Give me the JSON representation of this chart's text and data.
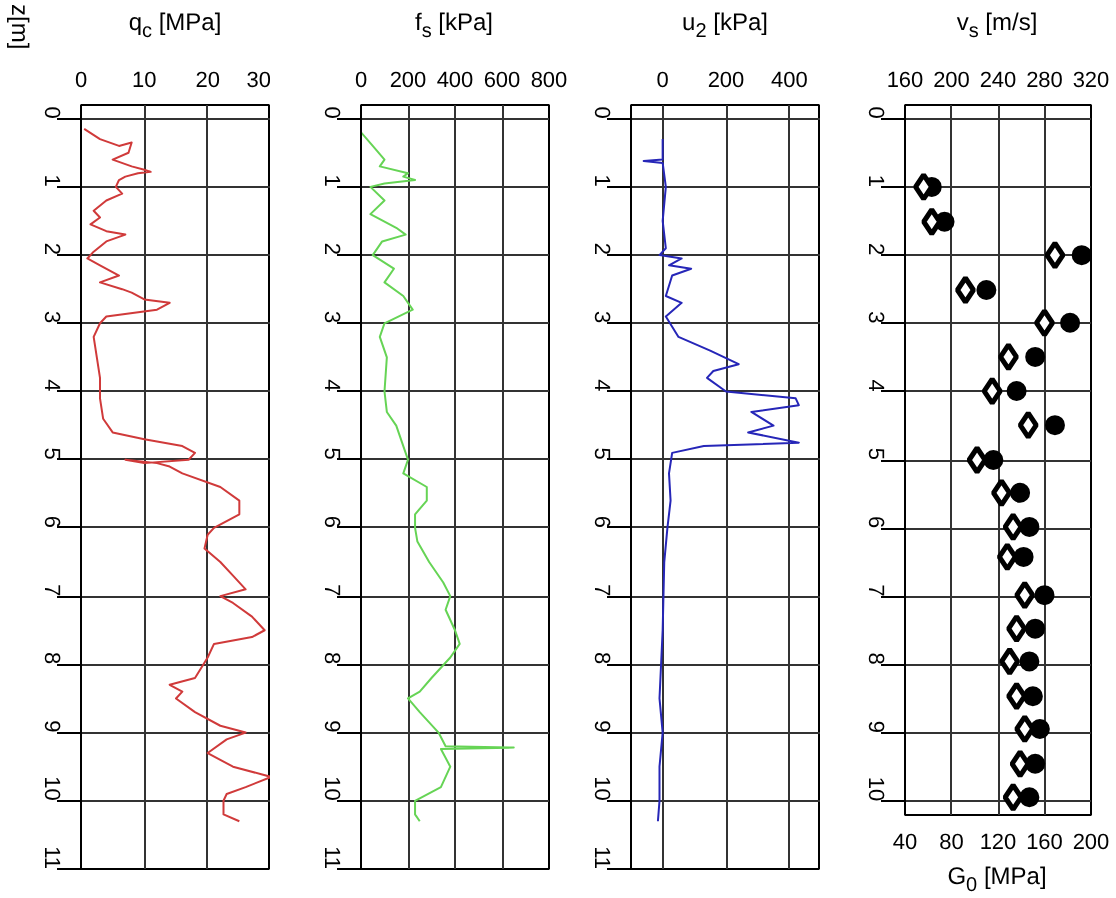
{
  "chart_data": [
    {
      "type": "line",
      "xlabel": "q$_{c}$ [MPa]",
      "ylabel": "z[m]",
      "xlim": [
        0,
        30
      ],
      "xticks": [
        0,
        10,
        20,
        30
      ],
      "ylim": [
        11,
        -0.2
      ],
      "yticks": [
        0,
        1,
        2,
        3,
        4,
        5,
        6,
        7,
        8,
        9,
        10,
        11
      ],
      "grid": true,
      "series": [
        {
          "color": "#d03a3a",
          "x": [
            0.5,
            3,
            6,
            8,
            7.5,
            5,
            8,
            10,
            11,
            9,
            7,
            6,
            5.5,
            6.5,
            4,
            2,
            3,
            1.5,
            4,
            7,
            4,
            2,
            1,
            3,
            6,
            3,
            6.5,
            8,
            10,
            14,
            12,
            4,
            3,
            2,
            2.5,
            3,
            3,
            3.5,
            5,
            10,
            16,
            18,
            17,
            10,
            7,
            12,
            14,
            16,
            22,
            25,
            25,
            21,
            20,
            19.5,
            22,
            24,
            26,
            22,
            24,
            27,
            29,
            27,
            21,
            20,
            18,
            14,
            16,
            15,
            18,
            22,
            26,
            23,
            20,
            24,
            30,
            26,
            23,
            22.5,
            22.5,
            25
          ],
          "values": [
            0.15,
            0.3,
            0.4,
            0.35,
            0.5,
            0.6,
            0.7,
            0.75,
            0.78,
            0.8,
            0.85,
            0.9,
            1.0,
            1.1,
            1.2,
            1.35,
            1.45,
            1.55,
            1.65,
            1.7,
            1.8,
            1.95,
            2.05,
            2.15,
            2.3,
            2.4,
            2.5,
            2.55,
            2.65,
            2.7,
            2.8,
            2.9,
            3.0,
            3.2,
            3.5,
            3.8,
            4.1,
            4.4,
            4.6,
            4.7,
            4.8,
            4.9,
            5.0,
            5.05,
            5.0,
            5.05,
            5.1,
            5.2,
            5.4,
            5.6,
            5.8,
            6.0,
            6.1,
            6.3,
            6.5,
            6.7,
            6.9,
            7.0,
            7.1,
            7.3,
            7.5,
            7.6,
            7.7,
            7.9,
            8.2,
            8.3,
            8.4,
            8.5,
            8.7,
            8.9,
            9.0,
            9.1,
            9.3,
            9.5,
            9.65,
            9.8,
            9.9,
            10.0,
            10.2,
            10.3
          ]
        }
      ]
    },
    {
      "type": "line",
      "xlabel": "f$_{s}$ [kPa]",
      "xlim": [
        0,
        800
      ],
      "xticks": [
        0,
        200,
        400,
        600,
        800
      ],
      "ylim": [
        11,
        -0.2
      ],
      "yticks": [
        0,
        1,
        2,
        3,
        4,
        5,
        6,
        7,
        8,
        9,
        10,
        11
      ],
      "grid": true,
      "series": [
        {
          "color": "#66d455",
          "x": [
            0,
            50,
            100,
            80,
            200,
            180,
            230,
            100,
            40,
            100,
            40,
            150,
            190,
            90,
            50,
            140,
            100,
            180,
            220,
            100,
            80,
            110,
            100,
            110,
            150,
            180,
            200,
            180,
            280,
            280,
            230,
            230,
            240,
            290,
            350,
            380,
            360,
            400,
            420,
            380,
            300,
            250,
            200,
            250,
            330,
            360,
            650,
            340,
            380,
            340,
            230,
            230,
            250
          ],
          "values": [
            0.2,
            0.4,
            0.6,
            0.7,
            0.8,
            0.85,
            0.9,
            0.95,
            1.0,
            1.2,
            1.4,
            1.6,
            1.7,
            1.8,
            2.0,
            2.2,
            2.4,
            2.6,
            2.8,
            3.0,
            3.2,
            3.5,
            4.0,
            4.3,
            4.5,
            4.8,
            5.0,
            5.2,
            5.4,
            5.6,
            5.8,
            6.0,
            6.2,
            6.5,
            6.8,
            7.0,
            7.2,
            7.5,
            7.7,
            7.9,
            8.2,
            8.4,
            8.5,
            8.7,
            9.0,
            9.2,
            9.22,
            9.24,
            9.5,
            9.8,
            10.0,
            10.2,
            10.3
          ]
        }
      ]
    },
    {
      "type": "line",
      "xlabel": "u$_{2}$ [kPa]",
      "xlim": [
        -100,
        500
      ],
      "xticks": [
        0,
        200,
        400
      ],
      "ylim": [
        11,
        -0.2
      ],
      "yticks": [
        0,
        1,
        2,
        3,
        4,
        5,
        6,
        7,
        8,
        9,
        10,
        11
      ],
      "grid": true,
      "series": [
        {
          "color": "#2626b8",
          "x": [
            0,
            0,
            -60,
            0,
            10,
            0,
            10,
            -10,
            60,
            20,
            90,
            30,
            10,
            60,
            10,
            50,
            150,
            240,
            160,
            140,
            200,
            420,
            430,
            280,
            350,
            270,
            430,
            130,
            30,
            20,
            25,
            15,
            5,
            0,
            -10,
            0,
            -10,
            -10,
            -15
          ],
          "values": [
            0.3,
            0.6,
            0.62,
            0.65,
            1.0,
            1.5,
            1.9,
            2.0,
            2.05,
            2.15,
            2.2,
            2.3,
            2.6,
            2.7,
            2.9,
            3.2,
            3.4,
            3.6,
            3.7,
            3.8,
            4.0,
            4.1,
            4.2,
            4.3,
            4.5,
            4.6,
            4.75,
            4.8,
            4.9,
            5.2,
            5.6,
            6.0,
            6.5,
            7.5,
            8.5,
            9.0,
            9.5,
            10.0,
            10.3
          ]
        }
      ]
    },
    {
      "type": "scatter",
      "x2label": "v$_{s}$ [m/s]",
      "xlabel": "G$_{0}$ [MPa]",
      "xlim": [
        40,
        200
      ],
      "xticks": [
        40,
        80,
        120,
        160,
        200
      ],
      "x2lim": [
        160,
        320
      ],
      "x2ticks": [
        160,
        200,
        240,
        280,
        320
      ],
      "ylim": [
        10.2,
        -0.2
      ],
      "yticks": [
        0,
        1,
        2,
        3,
        4,
        5,
        6,
        7,
        8,
        9,
        10
      ],
      "grid": true,
      "series": [
        {
          "axis": "x2",
          "marker": "circle",
          "color": "#000000",
          "x": [
            183,
            194,
            312,
            230,
            302,
            272,
            256,
            289,
            236,
            259,
            267,
            262,
            280,
            272,
            267,
            270,
            276,
            272,
            267
          ],
          "values": [
            1.0,
            1.51,
            2.0,
            2.51,
            2.99,
            3.49,
            3.99,
            4.49,
            5.0,
            5.48,
            5.98,
            6.42,
            6.98,
            7.47,
            7.95,
            8.46,
            8.94,
            9.45,
            9.94
          ]
        },
        {
          "marker": "diamond",
          "color": "#000000",
          "x": [
            56,
            63,
            169,
            92,
            160,
            129,
            115,
            146,
            102,
            123,
            133,
            128,
            143,
            136,
            130,
            136,
            143,
            139,
            133
          ],
          "values": [
            1.0,
            1.51,
            2.0,
            2.51,
            2.99,
            3.49,
            3.99,
            4.49,
            5.0,
            5.48,
            5.98,
            6.42,
            6.98,
            7.47,
            7.95,
            8.46,
            8.94,
            9.45,
            9.94
          ]
        }
      ]
    }
  ]
}
